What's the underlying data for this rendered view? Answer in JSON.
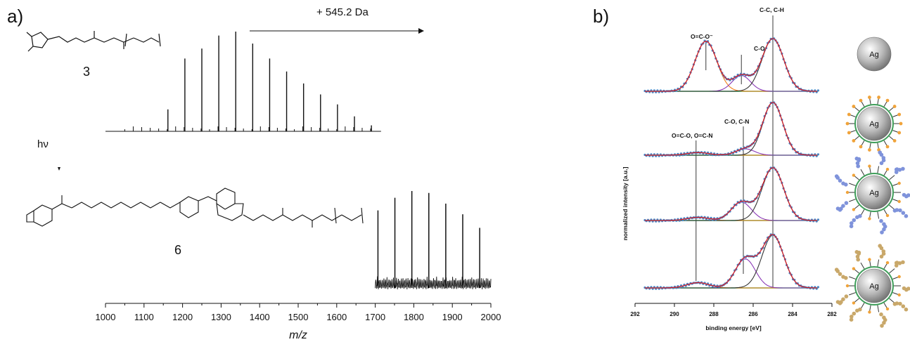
{
  "panels": {
    "a": {
      "label": "a)",
      "compound_top": "3",
      "compound_bottom": "6",
      "hv": "hν",
      "shift_label": "+ 545.2 Da",
      "xlabel": "m/z",
      "xticks": [
        "1000",
        "1100",
        "1200",
        "1300",
        "1400",
        "1500",
        "1600",
        "1700",
        "1800",
        "1900",
        "2000"
      ]
    },
    "b": {
      "label": "b)",
      "ylabel": "normalized intensity [a.u.]",
      "xlabel": "binding energy [eV]",
      "xticks": [
        "292",
        "290",
        "288",
        "286",
        "284",
        "282"
      ],
      "peak_labels": {
        "carboxylate": "O=C-O⁻",
        "c_o": "C-O",
        "cc_ch": "C-C, C-H",
        "c_o_c_n": "C-O, C-N",
        "ester_amide": "O=C-O, O=C-N"
      },
      "particle_label": "Ag"
    }
  },
  "chart_data": [
    {
      "type": "line",
      "title": "",
      "xlabel": "m/z",
      "ylabel": "",
      "xlim": [
        1000,
        2000
      ],
      "series": [
        {
          "peaks_x": [
            1162,
            1206,
            1250,
            1294,
            1338,
            1382,
            1426,
            1470,
            1514,
            1558,
            1602,
            1646,
            1690
          ],
          "peaks_y": [
            0.22,
            0.73,
            0.83,
            0.96,
            1.0,
            0.88,
            0.73,
            0.6,
            0.48,
            0.37,
            0.27,
            0.15,
            0.06
          ]
        },
        {
          "peaks_x": [
            1707,
            1751,
            1795,
            1839,
            1883,
            1927,
            1971
          ],
          "peaks_y": [
            0.8,
            0.93,
            1.0,
            0.98,
            0.87,
            0.76,
            0.62
          ]
        }
      ]
    },
    {
      "type": "line",
      "title": "",
      "xlabel": "binding energy [eV]",
      "ylabel": "normalized intensity [a.u.]",
      "xlim": [
        292,
        282
      ],
      "reference_lines_eV": [
        288.9,
        288.4,
        286.5,
        285.0
      ],
      "series": [
        {
          "components": [
            {
              "center": 288.4,
              "height": 0.95,
              "fwhm": 1.3
            },
            {
              "center": 286.6,
              "height": 0.3,
              "fwhm": 1.1
            },
            {
              "center": 285.0,
              "height": 1.0,
              "fwhm": 1.3
            }
          ]
        },
        {
          "components": [
            {
              "center": 288.8,
              "height": 0.05,
              "fwhm": 1.3
            },
            {
              "center": 286.4,
              "height": 0.12,
              "fwhm": 1.1
            },
            {
              "center": 285.0,
              "height": 1.0,
              "fwhm": 1.2
            }
          ]
        },
        {
          "components": [
            {
              "center": 288.8,
              "height": 0.06,
              "fwhm": 1.3
            },
            {
              "center": 286.6,
              "height": 0.35,
              "fwhm": 1.2
            },
            {
              "center": 285.0,
              "height": 1.0,
              "fwhm": 1.3
            }
          ]
        },
        {
          "components": [
            {
              "center": 288.8,
              "height": 0.1,
              "fwhm": 1.3
            },
            {
              "center": 286.4,
              "height": 0.55,
              "fwhm": 1.2
            },
            {
              "center": 285.0,
              "height": 1.0,
              "fwhm": 1.3
            }
          ]
        }
      ]
    }
  ]
}
